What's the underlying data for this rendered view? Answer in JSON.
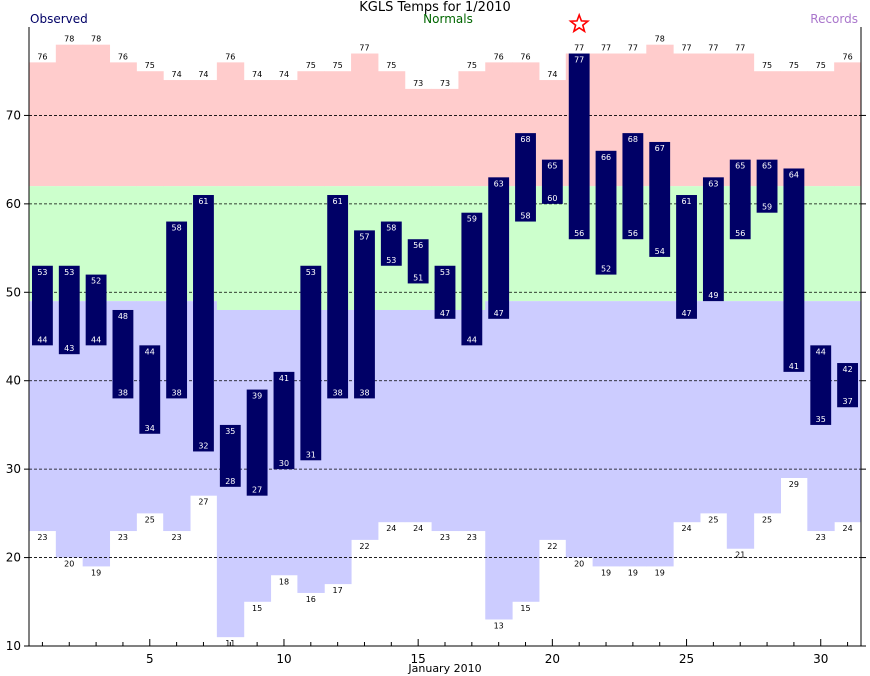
{
  "header": {
    "title": "KGLS Temps for 1/2010",
    "observed_label": "Observed",
    "normals_label": "Normals",
    "records_label": "Records"
  },
  "colors": {
    "observed": "#000066",
    "normals": "#006600",
    "records": "#aa77cc",
    "record_high_band": "#ffcccc",
    "normal_band": "#ccffcc",
    "record_low_band": "#ccccff",
    "star": "#ff0000"
  },
  "chart_data": {
    "type": "bar",
    "title": "KGLS Temps for 1/2010",
    "xlabel": "January 2010",
    "ylabel": "",
    "xlim": [
      1,
      31
    ],
    "ylim": [
      10,
      80
    ],
    "x_ticks": [
      5,
      10,
      15,
      20,
      25,
      30
    ],
    "y_ticks": [
      10,
      20,
      30,
      40,
      50,
      60,
      70
    ],
    "grid": "dashed horizontal at 20, 30, 40, 50, 60, 70",
    "days": [
      1,
      2,
      3,
      4,
      5,
      6,
      7,
      8,
      9,
      10,
      11,
      12,
      13,
      14,
      15,
      16,
      17,
      18,
      19,
      20,
      21,
      22,
      23,
      24,
      25,
      26,
      27,
      28,
      29,
      30,
      31
    ],
    "observed_high": [
      53,
      53,
      52,
      48,
      44,
      58,
      61,
      35,
      39,
      41,
      53,
      61,
      57,
      58,
      56,
      53,
      59,
      63,
      68,
      65,
      77,
      66,
      68,
      67,
      61,
      63,
      65,
      65,
      64,
      44,
      42
    ],
    "observed_low": [
      44,
      43,
      44,
      38,
      34,
      38,
      32,
      28,
      27,
      30,
      31,
      38,
      38,
      53,
      51,
      47,
      44,
      47,
      58,
      60,
      56,
      52,
      56,
      54,
      47,
      49,
      56,
      59,
      41,
      35,
      37
    ],
    "normal_high": [
      62,
      62,
      62,
      62,
      62,
      62,
      62,
      62,
      62,
      62,
      62,
      62,
      62,
      62,
      62,
      62,
      62,
      62,
      62,
      62,
      62,
      62,
      62,
      62,
      62,
      62,
      62,
      62,
      62,
      62,
      62
    ],
    "normal_low": [
      49,
      49,
      49,
      49,
      49,
      49,
      49,
      48,
      48,
      48,
      48,
      48,
      48,
      48,
      48,
      48,
      48,
      49,
      49,
      49,
      49,
      49,
      49,
      49,
      49,
      49,
      49,
      49,
      49,
      49,
      49
    ],
    "record_high": [
      76,
      78,
      78,
      76,
      75,
      74,
      74,
      76,
      74,
      74,
      75,
      75,
      77,
      75,
      73,
      73,
      75,
      76,
      76,
      74,
      77,
      77,
      77,
      78,
      77,
      77,
      77,
      75,
      75,
      75,
      76
    ],
    "record_low": [
      23,
      20,
      19,
      23,
      25,
      23,
      27,
      11,
      15,
      18,
      16,
      17,
      22,
      24,
      24,
      23,
      23,
      13,
      15,
      22,
      20,
      19,
      19,
      19,
      24,
      25,
      21,
      25,
      29,
      23,
      24
    ],
    "record_marker_days": [
      21
    ]
  }
}
